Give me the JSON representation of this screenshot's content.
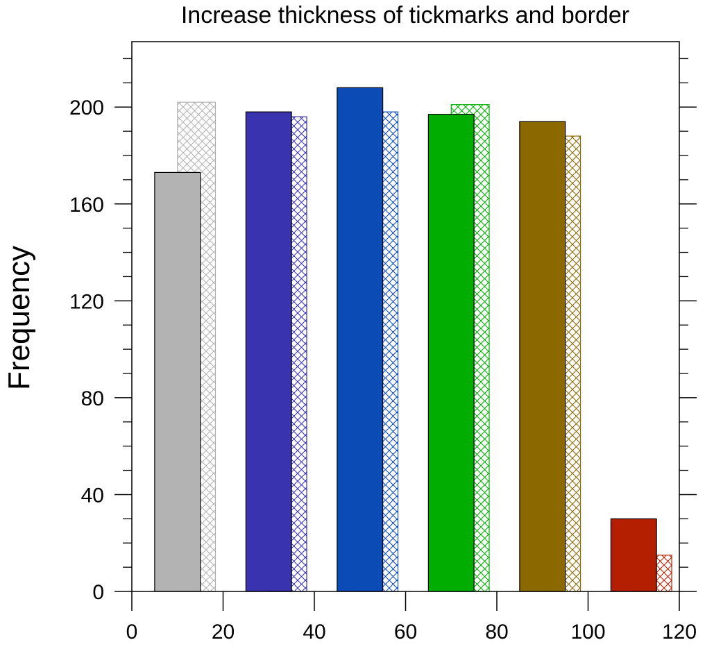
{
  "chart_data": {
    "type": "bar",
    "title": "Increase thickness of tickmarks and border",
    "xlabel": "",
    "ylabel": "Frequency",
    "xlim": [
      0,
      120
    ],
    "ylim": [
      0,
      227
    ],
    "grid": false,
    "x_ticks": [
      0,
      20,
      40,
      60,
      80,
      100,
      120
    ],
    "y_ticks": [
      0,
      40,
      80,
      120,
      160,
      200
    ],
    "y_minor_step": 10,
    "bar_width": 10,
    "hatched_width": 3.33,
    "groups": [
      {
        "color": "#b3b3b3",
        "solid": {
          "x": 10,
          "value": 173
        },
        "hatched": {
          "x": 15,
          "value": 202
        }
      },
      {
        "color": "#3a33b0",
        "solid": {
          "x": 30,
          "value": 198
        },
        "hatched": {
          "x": 35,
          "value": 196
        }
      },
      {
        "color": "#0b4bb5",
        "solid": {
          "x": 50,
          "value": 208
        },
        "hatched": {
          "x": 55,
          "value": 198
        }
      },
      {
        "color": "#00ad00",
        "solid": {
          "x": 70,
          "value": 197
        },
        "hatched": {
          "x": 75,
          "value": 201
        }
      },
      {
        "color": "#8c6800",
        "solid": {
          "x": 90,
          "value": 194
        },
        "hatched": {
          "x": 95,
          "value": 188
        }
      },
      {
        "color": "#b31f00",
        "solid": {
          "x": 110,
          "value": 30
        },
        "hatched": {
          "x": 115,
          "value": 15
        }
      }
    ]
  }
}
